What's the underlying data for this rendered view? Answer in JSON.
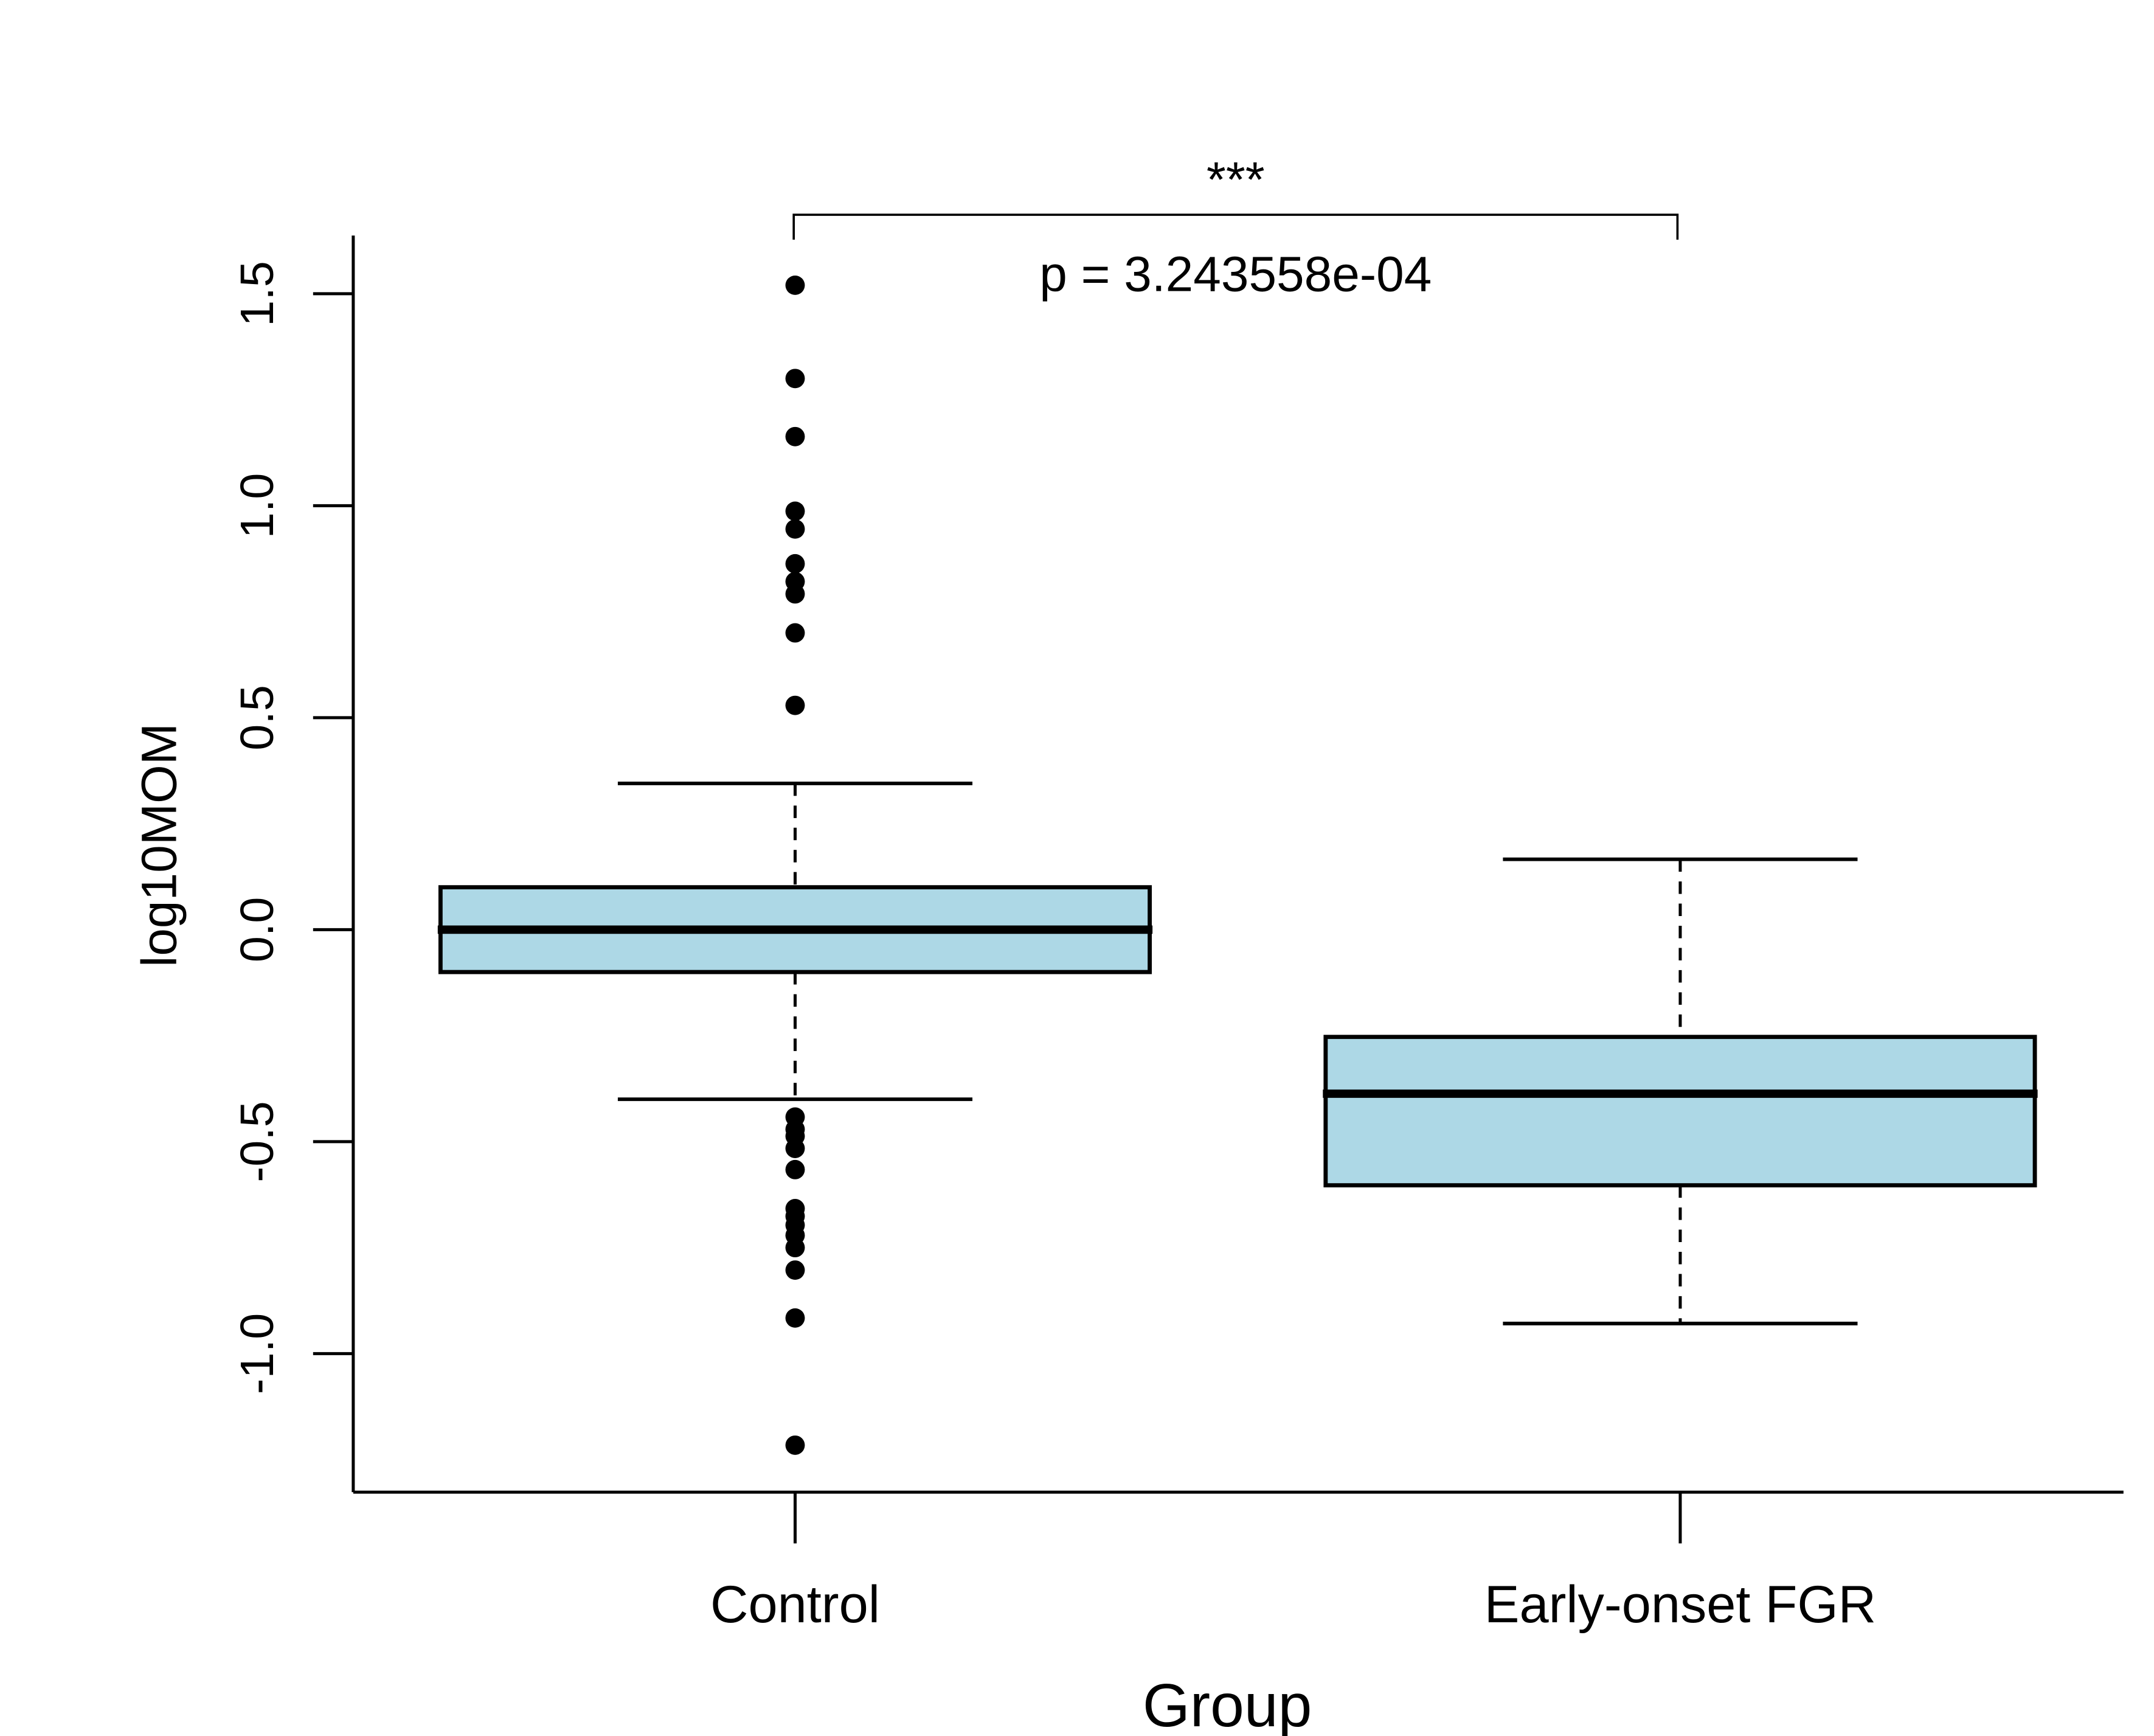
{
  "chart_data": {
    "type": "box",
    "title": "",
    "xlabel": "Group",
    "ylabel": "log10MOM",
    "ylim": [
      -1.3,
      1.64
    ],
    "y_ticks": [
      -1.0,
      -0.5,
      0.0,
      0.5,
      1.0,
      1.5
    ],
    "y_tick_labels": [
      "-1.0",
      "-0.5",
      "0.0",
      "0.5",
      "1.0",
      "1.5"
    ],
    "categories": [
      "Control",
      "Early-onset FGR"
    ],
    "grid": false,
    "box_fill": "#ADD8E6",
    "series": [
      {
        "name": "Control",
        "whisker_low": -0.4,
        "q1": -0.1,
        "median": 0.0,
        "q3": 0.1,
        "whisker_high": 0.345,
        "outliers": [
          1.52,
          1.3,
          1.163,
          0.987,
          0.945,
          0.863,
          0.821,
          0.792,
          0.7,
          0.529,
          -0.442,
          -0.471,
          -0.487,
          -0.516,
          -0.566,
          -0.658,
          -0.676,
          -0.697,
          -0.721,
          -0.75,
          -0.803,
          -0.916,
          -1.216
        ]
      },
      {
        "name": "Early-onset FGR",
        "whisker_low": -0.929,
        "q1": -0.603,
        "median": -0.387,
        "q3": -0.253,
        "whisker_high": 0.166,
        "outliers": []
      }
    ],
    "annotations": {
      "significance": "***",
      "p_value_text": "p = 3.243558e-04",
      "comparison": [
        "Control",
        "Early-onset FGR"
      ]
    }
  }
}
